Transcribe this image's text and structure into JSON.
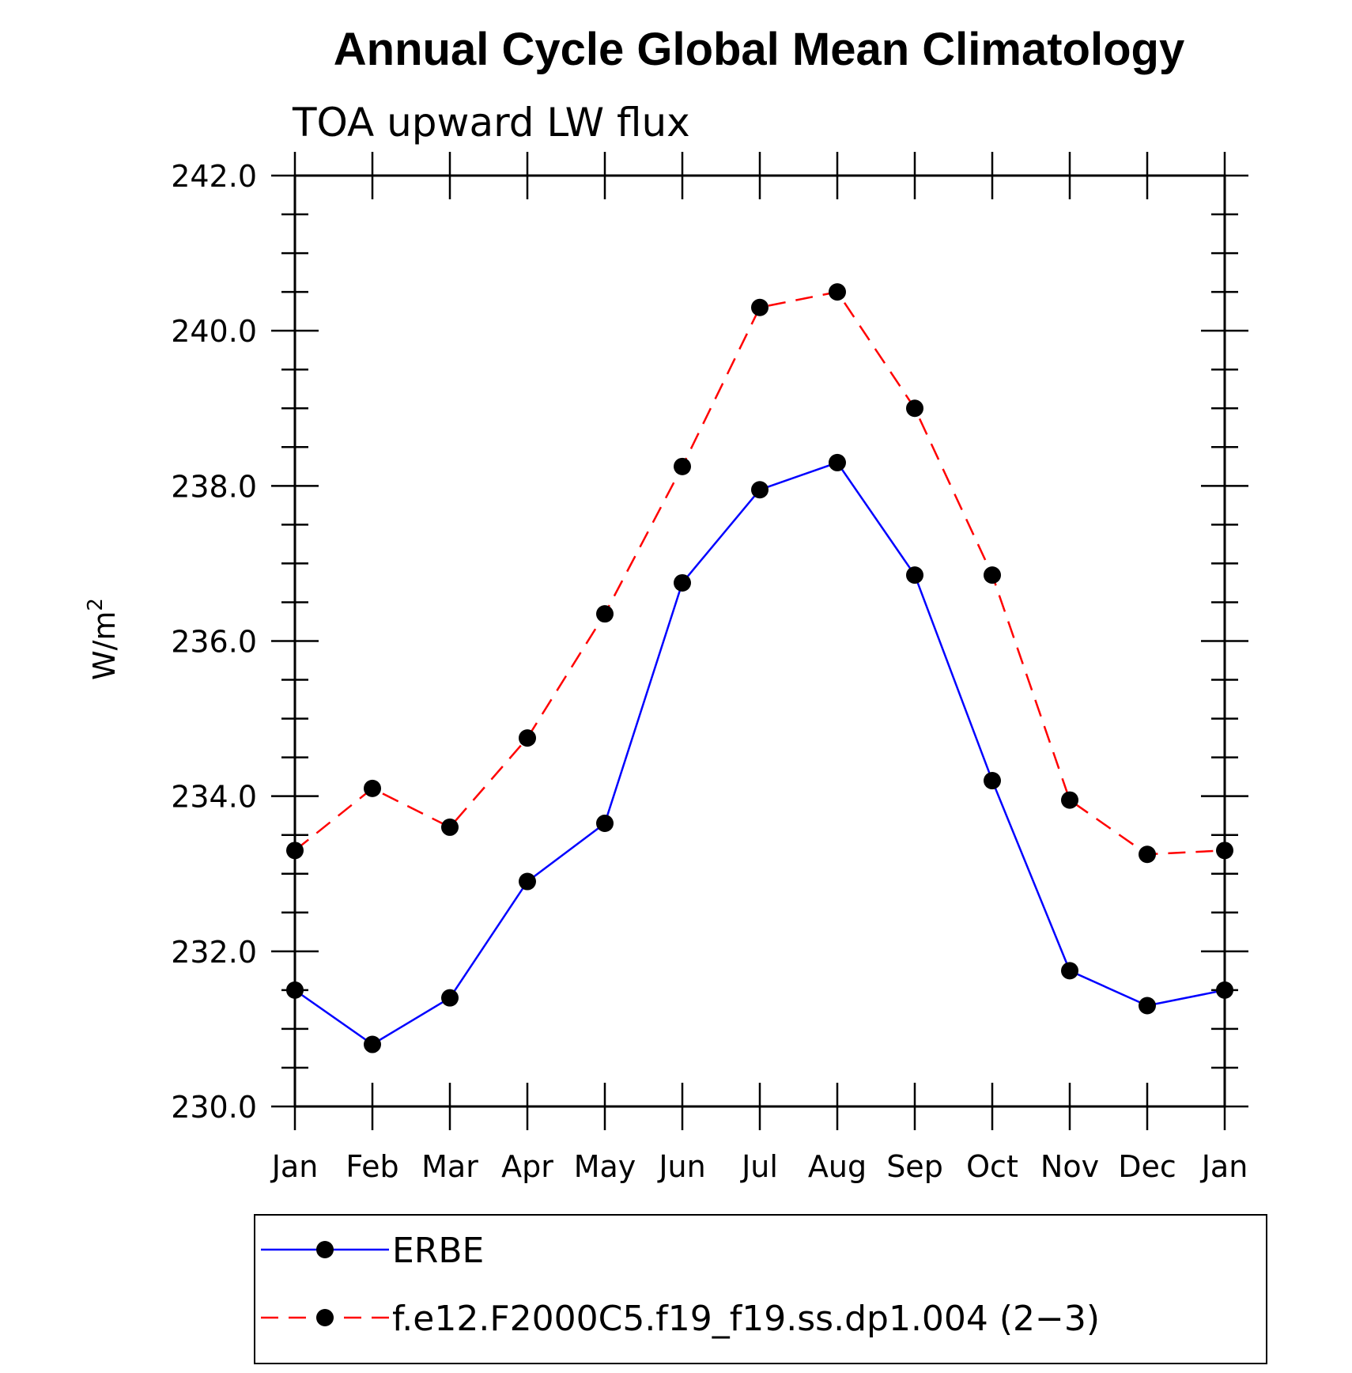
{
  "chart_data": {
    "type": "line",
    "title": "Annual Cycle Global Mean Climatology",
    "subtitle": "TOA upward LW flux",
    "ylabel": "W/m",
    "ylabel_sup": "2",
    "xlabel": "",
    "categories": [
      "Jan",
      "Feb",
      "Mar",
      "Apr",
      "May",
      "Jun",
      "Jul",
      "Aug",
      "Sep",
      "Oct",
      "Nov",
      "Dec",
      "Jan"
    ],
    "ylim": [
      230.0,
      242.0
    ],
    "yticks": [
      "230.0",
      "232.0",
      "234.0",
      "236.0",
      "238.0",
      "240.0",
      "242.0"
    ],
    "grid": false,
    "legend_position": "bottom",
    "series": [
      {
        "name": "ERBE",
        "color": "#0000ff",
        "dash": "solid",
        "marker": "circle",
        "values": [
          231.5,
          230.8,
          231.4,
          232.9,
          233.65,
          236.75,
          237.95,
          238.3,
          236.85,
          234.2,
          231.75,
          231.3,
          231.5
        ]
      },
      {
        "name": "f.e12.F2000C5.f19_f19.ss.dp1.004 (2−3)",
        "color": "#ff0000",
        "dash": "dashed",
        "marker": "circle",
        "values": [
          233.3,
          234.1,
          233.6,
          234.75,
          236.35,
          238.25,
          240.3,
          240.5,
          239.0,
          236.85,
          233.95,
          233.25,
          233.3
        ]
      }
    ]
  }
}
